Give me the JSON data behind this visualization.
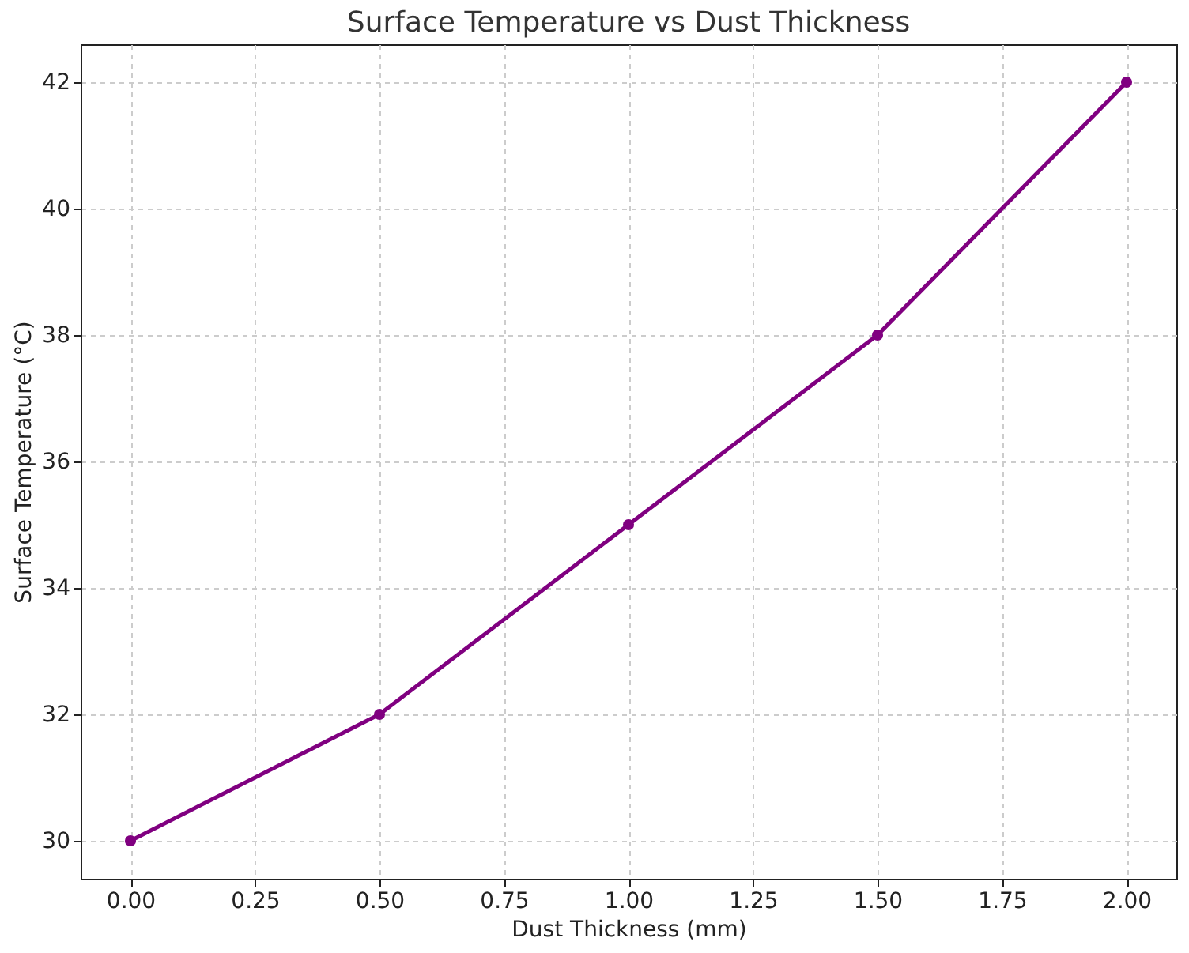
{
  "chart_data": {
    "type": "line",
    "title": "Surface Temperature vs Dust Thickness",
    "xlabel": "Dust Thickness (mm)",
    "ylabel": "Surface Temperature (°C)",
    "x": [
      0,
      0.5,
      1,
      1.5,
      2
    ],
    "series": [
      {
        "color": "#800080",
        "values": [
          30,
          32,
          35,
          38,
          42
        ]
      }
    ],
    "xlim": [
      -0.1,
      2.1
    ],
    "ylim": [
      29.4,
      42.6
    ],
    "xticks": [
      {
        "value": 0,
        "label": "0.00"
      },
      {
        "value": 0.25,
        "label": "0.25"
      },
      {
        "value": 0.5,
        "label": "0.50"
      },
      {
        "value": 0.75,
        "label": "0.75"
      },
      {
        "value": 1,
        "label": "1.00"
      },
      {
        "value": 1.25,
        "label": "1.25"
      },
      {
        "value": 1.5,
        "label": "1.50"
      },
      {
        "value": 1.75,
        "label": "1.75"
      },
      {
        "value": 2,
        "label": "2.00"
      }
    ],
    "yticks": [
      30,
      32,
      34,
      36,
      38,
      40,
      42
    ],
    "grid": true,
    "marker": "circle",
    "line_style": "solid"
  }
}
